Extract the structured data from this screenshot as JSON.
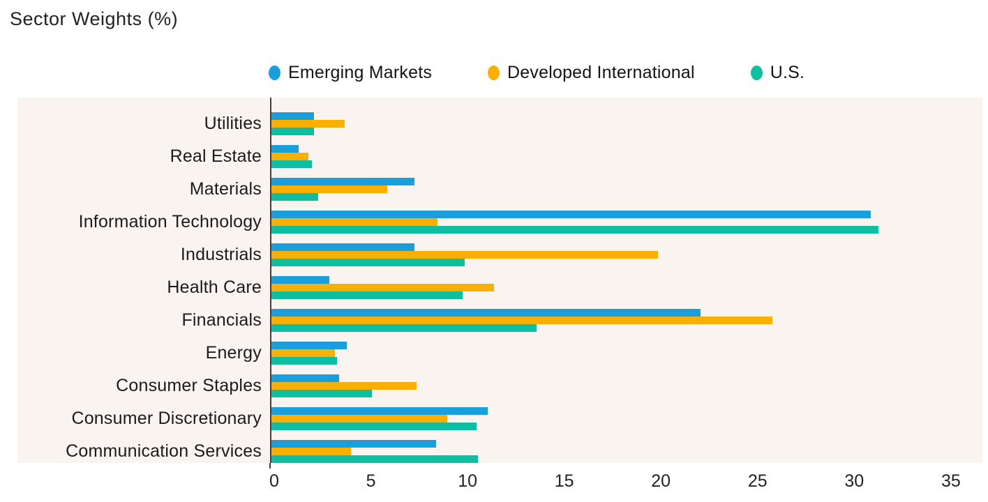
{
  "title": "Sector Weights (%)",
  "legend": {
    "items": [
      {
        "label": "Emerging Markets",
        "color": "#1A9FDC"
      },
      {
        "label": "Developed International",
        "color": "#F9B000"
      },
      {
        "label": "U.S.",
        "color": "#0DBEA0"
      }
    ]
  },
  "colors": {
    "panel_background": "#FAF4F1",
    "axis": "#3F3F3F",
    "text": "#1E1E1E"
  },
  "chart_data": {
    "type": "bar",
    "orientation": "horizontal",
    "title": "Sector Weights (%)",
    "categories": [
      "Utilities",
      "Real Estate",
      "Materials",
      "Information Technology",
      "Industrials",
      "Health Care",
      "Financials",
      "Energy",
      "Consumer Staples",
      "Consumer Discretionary",
      "Communication Services"
    ],
    "series": [
      {
        "name": "Emerging Markets",
        "color": "#1A9FDC",
        "values": [
          2.2,
          1.4,
          7.4,
          31.0,
          7.4,
          3.0,
          22.2,
          3.9,
          3.5,
          11.2,
          8.5
        ]
      },
      {
        "name": "Developed International",
        "color": "#F9B000",
        "values": [
          3.8,
          1.9,
          6.0,
          8.6,
          20.0,
          11.5,
          25.9,
          3.3,
          7.5,
          9.1,
          4.1
        ]
      },
      {
        "name": "U.S.",
        "color": "#0DBEA0",
        "values": [
          2.2,
          2.1,
          2.4,
          31.4,
          10.0,
          9.9,
          13.7,
          3.4,
          5.2,
          10.6,
          10.7
        ]
      }
    ],
    "xlim": [
      0,
      35
    ],
    "x_ticks": [
      0,
      5,
      10,
      15,
      20,
      25,
      30,
      35
    ],
    "xlabel": "",
    "ylabel": "",
    "legend_position": "top",
    "grid": false
  }
}
